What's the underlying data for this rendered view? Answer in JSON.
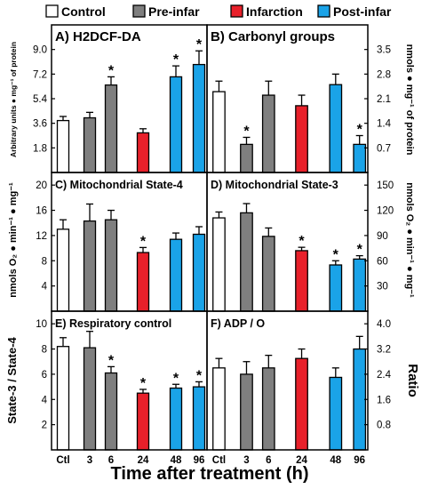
{
  "legend": [
    {
      "label": "Control",
      "color": "#ffffff"
    },
    {
      "label": "Pre-infar",
      "color": "#7f7f7f"
    },
    {
      "label": "Infarction",
      "color": "#e8202a"
    },
    {
      "label": "Post-infar",
      "color": "#1aa3e8"
    }
  ],
  "xlabel": "Time after treatment (h)",
  "categories": [
    "Ctl",
    "3",
    "6",
    "24",
    "48",
    "96"
  ],
  "colors": {
    "control": "#ffffff",
    "pre": "#7f7f7f",
    "infarction": "#e8202a",
    "post": "#1aa3e8"
  },
  "left_ylabels": {
    "row1": "Arbitrary units ● mg⁻¹ of protein",
    "row2": "nmols O₂ ● min⁻¹ ● mg⁻¹",
    "row3": "State-3 / State-4"
  },
  "right_ylabels": {
    "row1": "nmols ● mg⁻¹ of protein",
    "row2": "nmols O₂ ● min⁻¹ ● mg⁻¹",
    "row3": "Ratio"
  },
  "chart_data": [
    {
      "id": "A",
      "type": "bar",
      "title": "A) H2DCF-DA",
      "categories": [
        "Ctl",
        "3",
        "6",
        "24",
        "48",
        "96"
      ],
      "values": [
        3.8,
        4.0,
        6.4,
        2.9,
        7.0,
        7.9
      ],
      "errors": [
        0.3,
        0.4,
        0.6,
        0.3,
        0.8,
        1.0
      ],
      "significant": [
        false,
        false,
        true,
        false,
        true,
        true
      ],
      "ylim": [
        0,
        10.8
      ],
      "yticks": [
        "1.8",
        "3.6",
        "5.4",
        "7.2",
        "9.0"
      ],
      "axis_side": "left"
    },
    {
      "id": "B",
      "type": "bar",
      "title": "B) Carbonyl groups",
      "categories": [
        "Ctl",
        "3",
        "6",
        "24",
        "48",
        "96"
      ],
      "values": [
        2.3,
        0.8,
        2.2,
        1.9,
        2.5,
        0.8
      ],
      "errors": [
        0.3,
        0.2,
        0.4,
        0.3,
        0.3,
        0.25
      ],
      "significant": [
        false,
        true,
        false,
        false,
        false,
        true
      ],
      "ylim": [
        0,
        4.2
      ],
      "yticks": [
        "0.7",
        "1.4",
        "2.1",
        "2.8",
        "3.5"
      ],
      "axis_side": "right"
    },
    {
      "id": "C",
      "type": "bar",
      "title": "C) Mitochondrial State-4",
      "categories": [
        "Ctl",
        "3",
        "6",
        "24",
        "48",
        "96"
      ],
      "values": [
        13.0,
        14.3,
        14.5,
        9.3,
        11.4,
        12.2
      ],
      "errors": [
        1.5,
        2.7,
        1.5,
        0.8,
        1.0,
        1.2
      ],
      "significant": [
        false,
        false,
        false,
        true,
        false,
        false
      ],
      "ylim": [
        0,
        22
      ],
      "yticks": [
        "4",
        "8",
        "12",
        "16",
        "20"
      ],
      "axis_side": "left"
    },
    {
      "id": "D",
      "type": "bar",
      "title": "D) Mitochondrial State-3",
      "categories": [
        "Ctl",
        "3",
        "6",
        "24",
        "48",
        "96"
      ],
      "values": [
        111,
        117,
        89,
        72,
        55,
        62
      ],
      "errors": [
        7,
        11,
        10,
        4,
        5,
        4
      ],
      "significant": [
        false,
        false,
        false,
        true,
        true,
        true
      ],
      "ylim": [
        0,
        165
      ],
      "yticks": [
        "30",
        "60",
        "90",
        "120",
        "150"
      ],
      "axis_side": "right"
    },
    {
      "id": "E",
      "type": "bar",
      "title": "E) Respiratory control",
      "categories": [
        "Ctl",
        "3",
        "6",
        "24",
        "48",
        "96"
      ],
      "values": [
        8.2,
        8.1,
        6.1,
        4.5,
        4.9,
        5.0
      ],
      "errors": [
        0.7,
        1.3,
        0.5,
        0.3,
        0.3,
        0.4
      ],
      "significant": [
        false,
        false,
        true,
        true,
        true,
        true
      ],
      "ylim": [
        0,
        11
      ],
      "yticks": [
        "2",
        "4",
        "6",
        "8",
        "10"
      ],
      "axis_side": "left"
    },
    {
      "id": "F",
      "type": "bar",
      "title": "F) ADP / O",
      "categories": [
        "Ctl",
        "3",
        "6",
        "24",
        "48",
        "96"
      ],
      "values": [
        2.6,
        2.4,
        2.6,
        2.9,
        2.3,
        3.2
      ],
      "errors": [
        0.3,
        0.4,
        0.4,
        0.3,
        0.3,
        0.4
      ],
      "significant": [
        false,
        false,
        false,
        false,
        false,
        false
      ],
      "ylim": [
        0,
        4.4
      ],
      "yticks": [
        "0.8",
        "1.6",
        "2.4",
        "3.2",
        "4.0"
      ],
      "axis_side": "right"
    }
  ]
}
